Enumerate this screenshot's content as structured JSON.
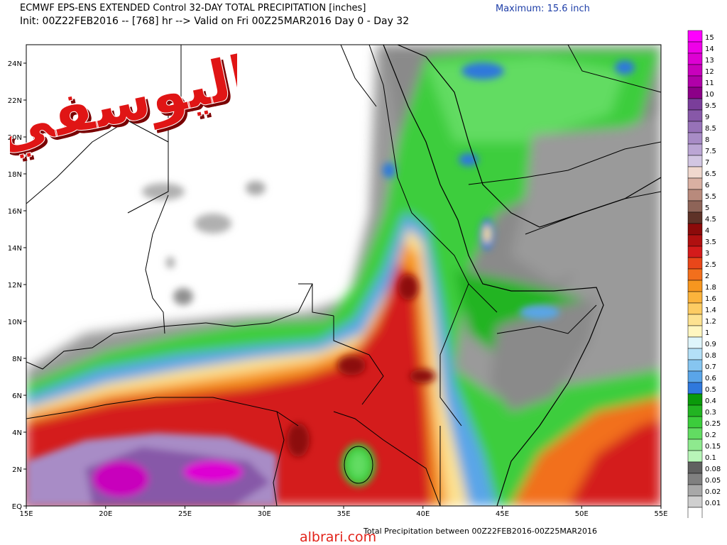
{
  "header": {
    "title_line1": "ECMWF EPS-ENS EXTENDED Control 32-DAY TOTAL PRECIPITATION [inches]",
    "title_line2": "Init: 00Z22FEB2016 -- [768] hr --> Valid on Fri 00Z25MAR2016  Day 0 - Day 32",
    "maximum_label": "Maximum: 15.6 inch"
  },
  "footer": {
    "text": "Total Precipitation between 00Z22FEB2016-00Z25MAR2016",
    "site": "albrari.com"
  },
  "watermark": {
    "text": "اليوسفي",
    "color": "#e01515"
  },
  "map": {
    "lon_range": [
      15,
      55
    ],
    "lat_range": [
      0,
      25
    ],
    "lon_ticks": [
      "15E",
      "20E",
      "25E",
      "30E",
      "35E",
      "40E",
      "45E",
      "50E",
      "55E"
    ],
    "lat_ticks": [
      "EQ",
      "2N",
      "4N",
      "6N",
      "8N",
      "10N",
      "12N",
      "14N",
      "16N",
      "18N",
      "20N",
      "22N",
      "24N"
    ]
  },
  "legend": {
    "levels": [
      {
        "label": "15",
        "color": "#ff00ff"
      },
      {
        "label": "14",
        "color": "#ee00e8"
      },
      {
        "label": "13",
        "color": "#dd00d3"
      },
      {
        "label": "12",
        "color": "#c800bc"
      },
      {
        "label": "11",
        "color": "#b000a8"
      },
      {
        "label": "10",
        "color": "#8c0088"
      },
      {
        "label": "9.5",
        "color": "#7a3e9a"
      },
      {
        "label": "9",
        "color": "#8758a8"
      },
      {
        "label": "8.5",
        "color": "#9772b8"
      },
      {
        "label": "8",
        "color": "#a88cc6"
      },
      {
        "label": "7.5",
        "color": "#bba6d4"
      },
      {
        "label": "7",
        "color": "#d2c6e2"
      },
      {
        "label": "6.5",
        "color": "#f0d8ce"
      },
      {
        "label": "6",
        "color": "#d9b0a2"
      },
      {
        "label": "5.5",
        "color": "#b88a7c"
      },
      {
        "label": "5",
        "color": "#8e6458"
      },
      {
        "label": "4.5",
        "color": "#5e3228"
      },
      {
        "label": "4",
        "color": "#8c0a0a"
      },
      {
        "label": "3.5",
        "color": "#b01010"
      },
      {
        "label": "3",
        "color": "#d41b1b"
      },
      {
        "label": "2.5",
        "color": "#e8471a"
      },
      {
        "label": "2",
        "color": "#f26f1c"
      },
      {
        "label": "1.8",
        "color": "#f7961f"
      },
      {
        "label": "1.6",
        "color": "#fbb33c"
      },
      {
        "label": "1.4",
        "color": "#fdcc63"
      },
      {
        "label": "1.2",
        "color": "#fde291"
      },
      {
        "label": "1",
        "color": "#fff6c0"
      },
      {
        "label": "0.9",
        "color": "#dff5fb"
      },
      {
        "label": "0.8",
        "color": "#b4e0f7"
      },
      {
        "label": "0.7",
        "color": "#86c5f0"
      },
      {
        "label": "0.6",
        "color": "#5aa5e8"
      },
      {
        "label": "0.5",
        "color": "#2f78dc"
      },
      {
        "label": "0.4",
        "color": "#0a9a0a"
      },
      {
        "label": "0.3",
        "color": "#22b422"
      },
      {
        "label": "0.25",
        "color": "#3ccd3c"
      },
      {
        "label": "0.2",
        "color": "#62dc62"
      },
      {
        "label": "0.15",
        "color": "#8ee98e"
      },
      {
        "label": "0.1",
        "color": "#b8f5b8"
      },
      {
        "label": "0.08",
        "color": "#606060"
      },
      {
        "label": "0.05",
        "color": "#808080"
      },
      {
        "label": "0.02",
        "color": "#a8a8a8"
      },
      {
        "label": "0.01",
        "color": "#cfcfcf"
      },
      {
        "label": "",
        "color": "#ffffff"
      }
    ]
  }
}
